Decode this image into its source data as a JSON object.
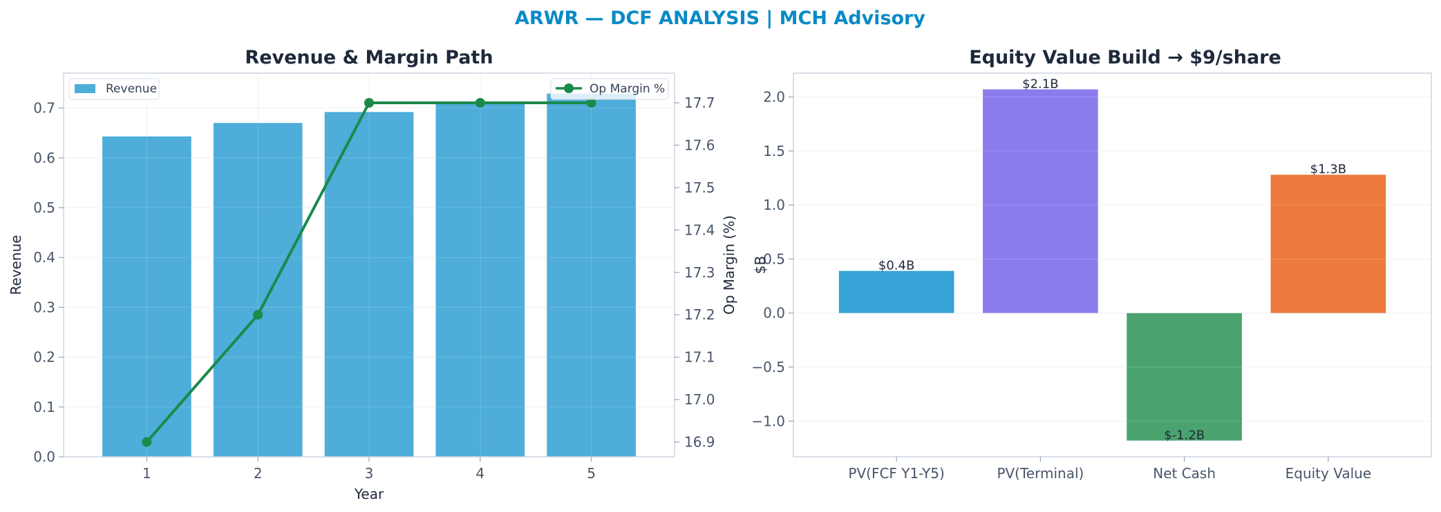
{
  "figure_title": "ARWR — DCF ANALYSIS | MCH Advisory",
  "colors": {
    "title": "#0a8ac6",
    "revenue_bar": "#4eadd9",
    "margin_line": "#1a8a4a",
    "pv_fcf": "#35a3d6",
    "pv_terminal": "#8b7ced",
    "net_cash": "#4aa36e",
    "equity_value": "#ec7a3d"
  },
  "chart_data": [
    {
      "type": "bar",
      "title": "Revenue & Margin Path",
      "xlabel": "Year",
      "ylabel": "Revenue",
      "y2label": "Op Margin (%)",
      "categories": [
        "1",
        "2",
        "3",
        "4",
        "5"
      ],
      "ylim": [
        0,
        0.77
      ],
      "yticks": [
        "0.0",
        "0.1",
        "0.2",
        "0.3",
        "0.4",
        "0.5",
        "0.6",
        "0.7"
      ],
      "y2lim": [
        16.865,
        17.77
      ],
      "y2ticks": [
        "16.9",
        "17.0",
        "17.1",
        "17.2",
        "17.3",
        "17.4",
        "17.5",
        "17.6",
        "17.7"
      ],
      "series": [
        {
          "name": "Revenue",
          "type": "bar",
          "axis": "left",
          "values": [
            0.643,
            0.67,
            0.692,
            0.712,
            0.729
          ]
        },
        {
          "name": "Op Margin %",
          "type": "line",
          "axis": "right",
          "values": [
            16.9,
            17.2,
            17.7,
            17.7,
            17.7
          ]
        }
      ],
      "legend": [
        "Revenue",
        "Op Margin %"
      ],
      "legend_placement": "upper-left and upper-right",
      "grid": true
    },
    {
      "type": "bar",
      "title": "Equity Value Build → $9/share",
      "xlabel": "",
      "ylabel": "$B",
      "categories": [
        "PV(FCF Y1-Y5)",
        "PV(Terminal)",
        "Net Cash",
        "Equity Value"
      ],
      "values": [
        0.39,
        2.07,
        -1.18,
        1.28
      ],
      "data_labels": [
        "$0.4B",
        "$2.1B",
        "$-1.2B",
        "$1.3B"
      ],
      "ylim": [
        -1.33,
        2.22
      ],
      "yticks": [
        "−1.0",
        "−0.5",
        "0.0",
        "0.5",
        "1.0",
        "1.5",
        "2.0"
      ],
      "ytick_values": [
        -1.0,
        -0.5,
        0.0,
        0.5,
        1.0,
        1.5,
        2.0
      ],
      "grid": true
    }
  ]
}
